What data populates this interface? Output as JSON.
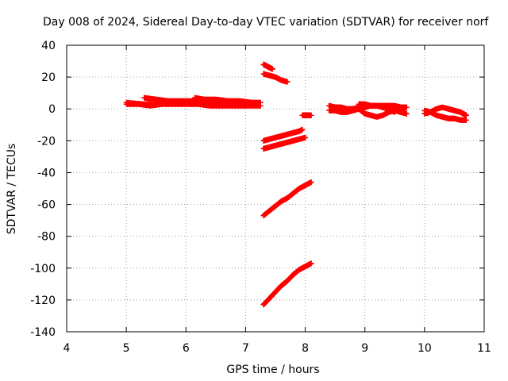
{
  "chart_data": {
    "type": "scatter",
    "title": "Day 008 of 2024, Sidereal Day-to-day VTEC variation (SDTVAR) for receiver norf",
    "xlabel": "GPS time / hours",
    "ylabel": "SDTVAR / TECUs",
    "xlim": [
      4,
      11
    ],
    "ylim": [
      -140,
      40
    ],
    "x_ticks": [
      4,
      5,
      6,
      7,
      8,
      9,
      10,
      11
    ],
    "y_ticks": [
      -140,
      -120,
      -100,
      -80,
      -60,
      -40,
      -20,
      0,
      20,
      40
    ],
    "grid": true,
    "marker": "plus",
    "color": "#ff0000",
    "series": [
      {
        "x": [
          5.0,
          5.2,
          5.4,
          5.6,
          5.8,
          6.0,
          6.2,
          6.4,
          6.6,
          6.8,
          7.0,
          7.25
        ],
        "y": [
          3,
          3,
          2,
          3,
          3,
          3,
          3,
          2,
          2,
          2,
          2,
          2
        ]
      },
      {
        "x": [
          5.3,
          5.5,
          5.7,
          5.9,
          6.1,
          6.3,
          6.5,
          6.7,
          6.9,
          7.1,
          7.25
        ],
        "y": [
          7,
          6,
          5,
          5,
          5,
          5,
          5,
          4,
          4,
          4,
          4
        ]
      },
      {
        "x": [
          5.0,
          5.3,
          5.6,
          5.9,
          6.2,
          6.5,
          6.8,
          7.1
        ],
        "y": [
          4,
          3,
          4,
          4,
          4,
          4,
          3,
          3
        ]
      },
      {
        "x": [
          6.15,
          6.3,
          6.5,
          6.7,
          6.9,
          7.1
        ],
        "y": [
          7,
          6,
          6,
          5,
          5,
          4
        ]
      },
      {
        "x": [
          7.3,
          7.35,
          7.4,
          7.45
        ],
        "y": [
          28,
          27,
          26,
          25
        ]
      },
      {
        "x": [
          7.3,
          7.4,
          7.5,
          7.6,
          7.7
        ],
        "y": [
          22,
          21,
          20,
          18,
          17
        ]
      },
      {
        "x": [
          7.3,
          7.4,
          7.5,
          7.6,
          7.7,
          7.8,
          7.9,
          7.95
        ],
        "y": [
          -20,
          -19,
          -18,
          -17,
          -16,
          -15,
          -14,
          -13
        ]
      },
      {
        "x": [
          7.3,
          7.4,
          7.5,
          7.6,
          7.7,
          7.8,
          7.9,
          8.0
        ],
        "y": [
          -25,
          -24,
          -23,
          -22,
          -21,
          -20,
          -19,
          -18
        ]
      },
      {
        "x": [
          7.95,
          8.0,
          8.05,
          8.1
        ],
        "y": [
          -4,
          -4,
          -4,
          -4
        ]
      },
      {
        "x": [
          7.3,
          7.4,
          7.5,
          7.6,
          7.7,
          7.8,
          7.9,
          8.0,
          8.1
        ],
        "y": [
          -67,
          -64,
          -61,
          -58,
          -56,
          -53,
          -50,
          -48,
          -46
        ]
      },
      {
        "x": [
          7.3,
          7.4,
          7.5,
          7.6,
          7.7,
          7.8,
          7.9,
          8.0,
          8.1
        ],
        "y": [
          -123,
          -119,
          -115,
          -111,
          -108,
          -104,
          -101,
          -99,
          -97
        ]
      },
      {
        "x": [
          8.4,
          8.5,
          8.6,
          8.7,
          8.8,
          8.9,
          9.0,
          9.1,
          9.2,
          9.3,
          9.4,
          9.5,
          9.6,
          9.7
        ],
        "y": [
          2,
          1,
          1,
          0,
          0,
          1,
          1,
          2,
          2,
          2,
          2,
          2,
          1,
          1
        ]
      },
      {
        "x": [
          8.4,
          8.5,
          8.6,
          8.7,
          8.8,
          8.9,
          9.0,
          9.1,
          9.2,
          9.3,
          9.4,
          9.5,
          9.6,
          9.7
        ],
        "y": [
          -1,
          -1,
          -2,
          -2,
          -1,
          0,
          -3,
          -4,
          -5,
          -4,
          -2,
          -1,
          -2,
          -3
        ]
      },
      {
        "x": [
          8.9,
          9.0,
          9.1,
          9.2,
          9.3,
          9.4,
          9.5
        ],
        "y": [
          3,
          3,
          2,
          2,
          1,
          0,
          -2
        ]
      },
      {
        "x": [
          10.0,
          10.1,
          10.2,
          10.3,
          10.4,
          10.5,
          10.6,
          10.7
        ],
        "y": [
          -1,
          -2,
          -4,
          -5,
          -6,
          -6,
          -7,
          -7
        ]
      },
      {
        "x": [
          10.0,
          10.1,
          10.2,
          10.3,
          10.4,
          10.5,
          10.6,
          10.7
        ],
        "y": [
          -3,
          -2,
          0,
          1,
          0,
          -1,
          -2,
          -4
        ]
      }
    ]
  }
}
